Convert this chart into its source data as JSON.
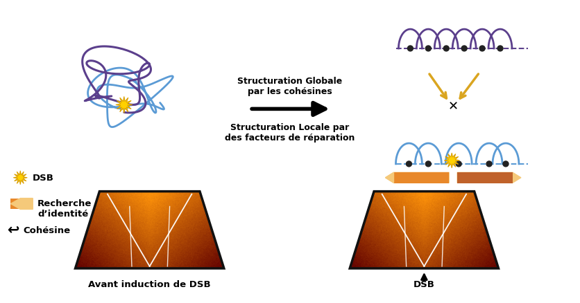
{
  "bg_color": "#ffffff",
  "text_structuration_globale": "Structuration Globale\npar les cohésines",
  "text_structuration_locale": "Structuration Locale par\ndes facteurs de réparation",
  "text_avant": "Avant induction de DSB",
  "text_dsb": "DSB",
  "text_legend_dsb": "DSB",
  "text_legend_recherche": "Recherche\nd’identité",
  "text_legend_cohesine": "Cohésine",
  "purple_color": "#5B3F8C",
  "blue_color": "#5B9BD5",
  "orange_color": "#E8882A",
  "orange_light": "#F5C97A",
  "yellow_star": "#FFD700",
  "trapezoid_border": "#111111"
}
